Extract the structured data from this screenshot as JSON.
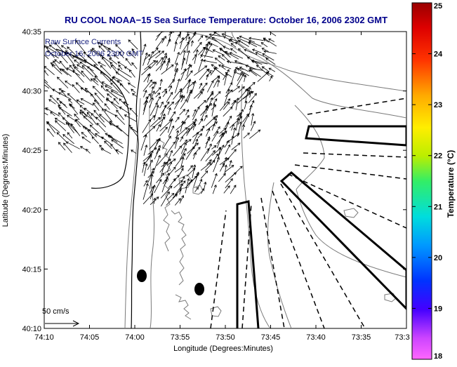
{
  "title": "RU COOL  NOAA−15  Sea Surface Temperature:  October 16, 2006 2302 GMT",
  "annotation": {
    "line1": "Raw Surface Currents",
    "line2": "October 16, 2006 2300 GMT"
  },
  "scale": {
    "label": "50 cm/s"
  },
  "colorbar": {
    "label": "Temperature (°C)",
    "min": 18,
    "max": 25,
    "ticks": [
      "18",
      "19",
      "20",
      "21",
      "22",
      "23",
      "24",
      "25"
    ]
  },
  "axes": {
    "xlabel": "Longitude (Degrees:Minutes)",
    "ylabel": "Latitude (Degrees:Minutes)",
    "xticks": [
      "74:10",
      "74:05",
      "74:00",
      "73:55",
      "73:50",
      "73:45",
      "73:40",
      "73:35",
      "73:3"
    ],
    "yticks": [
      "40:35",
      "40:30",
      "40:25",
      "40:20",
      "40:15",
      "40:10"
    ]
  },
  "colors": {
    "title": "#00008b",
    "annotation": "#1a237e",
    "coast": "#000000",
    "contour": "#7a7a7a",
    "vectors": "#000000"
  }
}
